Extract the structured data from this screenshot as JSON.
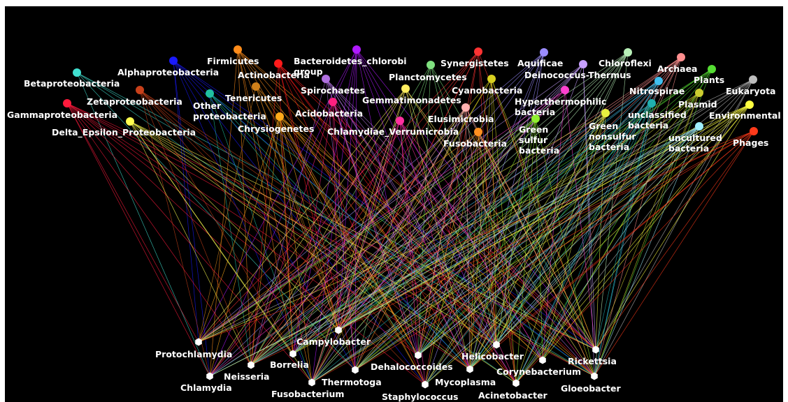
{
  "taxa": [
    {
      "id": "betaproteobacteria",
      "label": [
        "Betaproteobacteria"
      ],
      "color": "#40e0d0"
    },
    {
      "id": "alphaproteobacteria",
      "label": [
        "Alphaproteobacteria"
      ],
      "color": "#1a1aff"
    },
    {
      "id": "firmicutes",
      "label": [
        "Firmicutes"
      ],
      "color": "#ff8c1a"
    },
    {
      "id": "actinobacteria",
      "label": [
        "Actinobacteria"
      ],
      "color": "#ff1a1a"
    },
    {
      "id": "bacteroidetes-chlorobi",
      "label": [
        "Bacteroidetes_chlorobi",
        "group"
      ],
      "color": "#b01aff"
    },
    {
      "id": "synergistetes",
      "label": [
        "Synergistetes"
      ],
      "color": "#ff3333"
    },
    {
      "id": "planctomycetes",
      "label": [
        "Planctomycetes"
      ],
      "color": "#7fe07f"
    },
    {
      "id": "aquificae",
      "label": [
        "Aquificae"
      ],
      "color": "#9b8cff"
    },
    {
      "id": "deinococcus-thermus",
      "label": [
        "Deinococcus-Thermus"
      ],
      "color": "#c8a0ff"
    },
    {
      "id": "chloroflexi",
      "label": [
        "Chloroflexi"
      ],
      "color": "#b8f0b8"
    },
    {
      "id": "archaea",
      "label": [
        "Archaea"
      ],
      "color": "#ff8f8f"
    },
    {
      "id": "plants",
      "label": [
        "Plants"
      ],
      "color": "#55dd33"
    },
    {
      "id": "eukaryota",
      "label": [
        "Eukaryota"
      ],
      "color": "#bdbdbd"
    },
    {
      "id": "gammaproteobacteria",
      "label": [
        "Gammaproteobacteria"
      ],
      "color": "#ff1a3c"
    },
    {
      "id": "zetaproteobacteria",
      "label": [
        "Zetaproteobacteria"
      ],
      "color": "#c8401a"
    },
    {
      "id": "other-proteobacteria",
      "label": [
        "Other",
        "proteobacteria"
      ],
      "color": "#20c0a0"
    },
    {
      "id": "tenericutes",
      "label": [
        "Tenericutes"
      ],
      "color": "#d0801a"
    },
    {
      "id": "spirochaetes",
      "label": [
        "Spirochaetes"
      ],
      "color": "#b070e0"
    },
    {
      "id": "acidobacteria",
      "label": [
        "Acidobacteria"
      ],
      "color": "#ff2080"
    },
    {
      "id": "gemmatimonadetes",
      "label": [
        "Gemmatimonadetes"
      ],
      "color": "#ffee60"
    },
    {
      "id": "cyanobacteria",
      "label": [
        "Cyanobacteria"
      ],
      "color": "#d8d020"
    },
    {
      "id": "hyperthermophilic-bacteria",
      "label": [
        "Hyperthermophilic",
        "bacteria"
      ],
      "color": "#ff40d0"
    },
    {
      "id": "nitrospirae",
      "label": [
        "Nitrospirae"
      ],
      "color": "#40c0f0"
    },
    {
      "id": "plasmid",
      "label": [
        "Plasmid"
      ],
      "color": "#cccc30"
    },
    {
      "id": "environmental",
      "label": [
        "Environmental"
      ],
      "color": "#ffff40"
    },
    {
      "id": "delta-epsilon-proteobacteria",
      "label": [
        "Delta_Epsilon_Proteobacteria"
      ],
      "color": "#ffff50"
    },
    {
      "id": "chrysiogenetes",
      "label": [
        "Chrysiogenetes"
      ],
      "color": "#ffaa1a"
    },
    {
      "id": "chlamydiae-verrumicrobia",
      "label": [
        "Chlamydiae_Verrumicrobia"
      ],
      "color": "#ff30a0"
    },
    {
      "id": "elusimicrobia",
      "label": [
        "Elusimicrobia"
      ],
      "color": "#ffb0b0"
    },
    {
      "id": "fusobacteria",
      "label": [
        "Fusobacteria"
      ],
      "color": "#ff9020"
    },
    {
      "id": "green-sulfur-bacteria",
      "label": [
        "Green",
        "sulfur",
        "bacteria"
      ],
      "color": "#90ee30"
    },
    {
      "id": "green-nonsulfur-bacteria",
      "label": [
        "Green",
        "nonsulfur",
        "bacteria"
      ],
      "color": "#e8f040"
    },
    {
      "id": "unclassified-bacteria",
      "label": [
        "unclassified",
        "bacteria"
      ],
      "color": "#20b0b0"
    },
    {
      "id": "uncultured-bacteria",
      "label": [
        "uncultured",
        "bacteria"
      ],
      "color": "#a0f0ff"
    },
    {
      "id": "phages",
      "label": [
        "Phages"
      ],
      "color": "#ff3a1a"
    }
  ],
  "genera": [
    {
      "id": "protochlamydia",
      "label": "Protochlamydia"
    },
    {
      "id": "chlamydia",
      "label": "Chlamydia"
    },
    {
      "id": "neisseria",
      "label": "Neisseria"
    },
    {
      "id": "borrelia",
      "label": "Borrelia"
    },
    {
      "id": "campylobacter",
      "label": "Campylobacter"
    },
    {
      "id": "fusobacterium",
      "label": "Fusobacterium"
    },
    {
      "id": "thermotoga",
      "label": "Thermotoga"
    },
    {
      "id": "dehalococcoides",
      "label": "Dehalococcoides"
    },
    {
      "id": "staphylococcus",
      "label": "Staphylococcus"
    },
    {
      "id": "mycoplasma",
      "label": "Mycoplasma"
    },
    {
      "id": "helicobacter",
      "label": "Helicobacter"
    },
    {
      "id": "acinetobacter",
      "label": "Acinetobacter"
    },
    {
      "id": "corynebacterium",
      "label": "Corynebacterium"
    },
    {
      "id": "gloeobacter",
      "label": "Gloeobacter"
    },
    {
      "id": "rickettsia",
      "label": "Rickettsia"
    }
  ]
}
